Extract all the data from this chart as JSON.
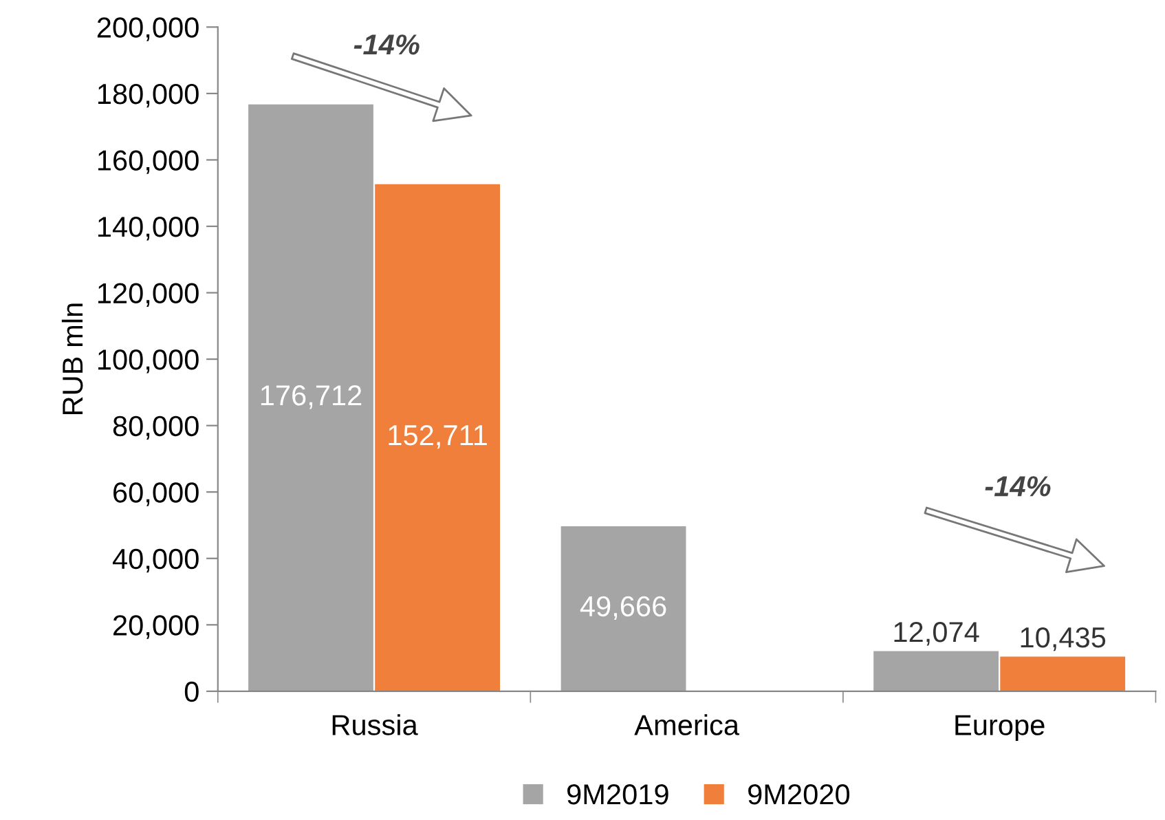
{
  "chart_data": {
    "type": "bar",
    "ylabel": "RUB mln",
    "categories": [
      "Russia",
      "America",
      "Europe"
    ],
    "series": [
      {
        "name": "9M2019",
        "color": "#a5a5a5",
        "values": [
          176712,
          49666,
          12074
        ],
        "value_labels": [
          "176,712",
          "49,666",
          "12,074"
        ]
      },
      {
        "name": "9M2020",
        "color": "#f07f3c",
        "values": [
          152711,
          null,
          10435
        ],
        "value_labels": [
          "152,711",
          null,
          "10,435"
        ]
      }
    ],
    "ylim": [
      0,
      200000
    ],
    "yticks": [
      {
        "value": 0,
        "label": "0"
      },
      {
        "value": 20000,
        "label": "20,000"
      },
      {
        "value": 40000,
        "label": "40,000"
      },
      {
        "value": 60000,
        "label": "60,000"
      },
      {
        "value": 80000,
        "label": "80,000"
      },
      {
        "value": 100000,
        "label": "100,000"
      },
      {
        "value": 120000,
        "label": "120,000"
      },
      {
        "value": 140000,
        "label": "140,000"
      },
      {
        "value": 160000,
        "label": "160,000"
      },
      {
        "value": 180000,
        "label": "180,000"
      },
      {
        "value": 200000,
        "label": "200,000"
      }
    ],
    "annotations": [
      "-14%",
      "-14%"
    ],
    "legend": "bottom",
    "grid": false
  }
}
